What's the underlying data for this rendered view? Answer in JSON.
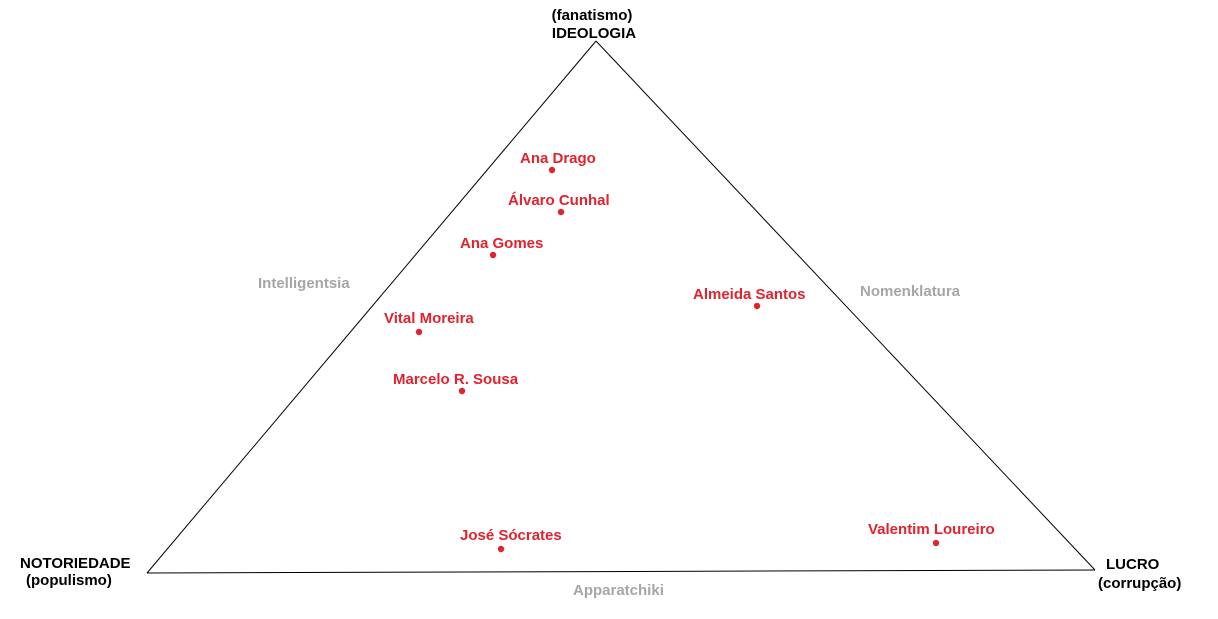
{
  "colors": {
    "point": "#e0232e",
    "edge": "#000000",
    "side_label": "#a6a6a6",
    "vertex_label": "#000000"
  },
  "vertices": {
    "top": {
      "subtitle": "(fanatismo)",
      "title": "IDEOLOGIA"
    },
    "left": {
      "title": "NOTORIEDADE",
      "subtitle": "(populismo)"
    },
    "right": {
      "title": "LUCRO",
      "subtitle": "(corrupção)"
    }
  },
  "sides": {
    "left": "Intelligentsia",
    "right": "Nomenklatura",
    "bottom": "Apparatchiki"
  },
  "people": [
    {
      "name": "Ana Drago"
    },
    {
      "name": "Álvaro Cunhal"
    },
    {
      "name": "Ana Gomes"
    },
    {
      "name": "Almeida Santos"
    },
    {
      "name": "Vital Moreira"
    },
    {
      "name": "Marcelo R. Sousa"
    },
    {
      "name": "José Sócrates"
    },
    {
      "name": "Valentim Loureiro"
    }
  ]
}
